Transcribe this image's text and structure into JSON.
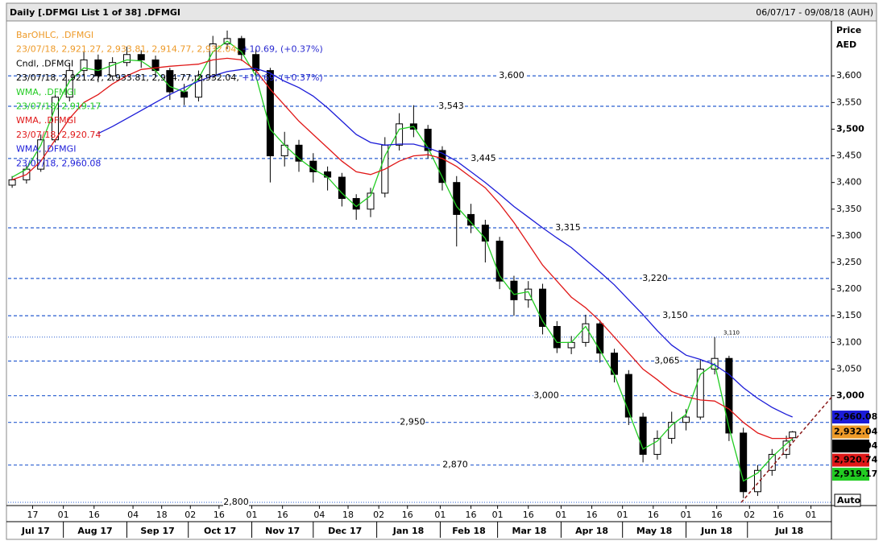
{
  "chart_data": {
    "type": "candlestick",
    "title": "Daily [.DFMGI List 1 of 38] .DFMGI",
    "date_range": "06/07/17 - 09/08/18 (AUH)",
    "y_axis_label": "Price",
    "y_axis_unit": "AED",
    "scale_mode": "Auto",
    "x": [
      "2017-07-07",
      "2017-07-14",
      "2017-07-21",
      "2017-07-28",
      "2017-08-04",
      "2017-08-11",
      "2017-08-18",
      "2017-08-25",
      "2017-09-01",
      "2017-09-08",
      "2017-09-15",
      "2017-09-22",
      "2017-09-29",
      "2017-10-06",
      "2017-10-13",
      "2017-10-20",
      "2017-10-27",
      "2017-11-03",
      "2017-11-10",
      "2017-11-17",
      "2017-11-24",
      "2017-12-01",
      "2017-12-08",
      "2017-12-15",
      "2017-12-22",
      "2017-12-29",
      "2018-01-05",
      "2018-01-12",
      "2018-01-19",
      "2018-01-26",
      "2018-02-02",
      "2018-02-09",
      "2018-02-16",
      "2018-02-23",
      "2018-03-02",
      "2018-03-09",
      "2018-03-16",
      "2018-03-23",
      "2018-03-30",
      "2018-04-06",
      "2018-04-13",
      "2018-04-20",
      "2018-04-27",
      "2018-05-04",
      "2018-05-11",
      "2018-05-18",
      "2018-05-25",
      "2018-06-01",
      "2018-06-08",
      "2018-06-15",
      "2018-06-22",
      "2018-06-29",
      "2018-07-06",
      "2018-07-13",
      "2018-07-20",
      "2018-07-23"
    ],
    "open": [
      3395,
      3405,
      3425,
      3480,
      3560,
      3610,
      3630,
      3600,
      3625,
      3640,
      3630,
      3610,
      3570,
      3560,
      3600,
      3660,
      3670,
      3640,
      3610,
      3450,
      3470,
      3440,
      3420,
      3410,
      3370,
      3350,
      3380,
      3470,
      3510,
      3500,
      3460,
      3400,
      3340,
      3320,
      3290,
      3215,
      3180,
      3200,
      3130,
      3090,
      3100,
      3135,
      3080,
      3040,
      2960,
      2890,
      2920,
      2950,
      2960,
      3050,
      3070,
      2930,
      2820,
      2860,
      2890,
      2921.27
    ],
    "high": [
      3412,
      3432,
      3490,
      3570,
      3622,
      3645,
      3640,
      3635,
      3655,
      3648,
      3638,
      3615,
      3585,
      3610,
      3675,
      3685,
      3675,
      3650,
      3615,
      3495,
      3480,
      3455,
      3430,
      3418,
      3378,
      3390,
      3485,
      3530,
      3545,
      3508,
      3468,
      3412,
      3360,
      3330,
      3298,
      3225,
      3215,
      3210,
      3140,
      3112,
      3152,
      3142,
      3088,
      3048,
      2968,
      2935,
      2970,
      2975,
      3068,
      3110,
      3075,
      2940,
      2870,
      2900,
      2925,
      2933.81
    ],
    "low": [
      3390,
      3398,
      3420,
      3475,
      3552,
      3600,
      3588,
      3592,
      3618,
      3615,
      3598,
      3555,
      3545,
      3552,
      3595,
      3650,
      3628,
      3600,
      3400,
      3430,
      3420,
      3400,
      3385,
      3355,
      3330,
      3335,
      3372,
      3460,
      3485,
      3445,
      3385,
      3280,
      3305,
      3250,
      3200,
      3150,
      3165,
      3115,
      3080,
      3078,
      3092,
      3062,
      3025,
      2945,
      2875,
      2880,
      2910,
      2935,
      2955,
      3040,
      2915,
      2808,
      2812,
      2850,
      2882,
      2914.77
    ],
    "close": [
      3405,
      3425,
      3480,
      3560,
      3610,
      3630,
      3600,
      3625,
      3640,
      3630,
      3610,
      3570,
      3560,
      3600,
      3660,
      3670,
      3640,
      3610,
      3450,
      3470,
      3440,
      3420,
      3410,
      3370,
      3350,
      3380,
      3470,
      3510,
      3500,
      3460,
      3400,
      3340,
      3320,
      3290,
      3215,
      3180,
      3200,
      3130,
      3090,
      3100,
      3135,
      3080,
      3040,
      2960,
      2890,
      2920,
      2950,
      2960,
      3050,
      3070,
      2930,
      2820,
      2860,
      2890,
      2915,
      2932.04
    ],
    "legend": [
      {
        "name": "BarOHLC, .DFMGI",
        "text": "23/07/18, 2,921.27, 2,933.81, 2,914.77, 2,932.04,",
        "change": "+10.69, (+0.37%)",
        "color": "#ee9a28"
      },
      {
        "name": "Cndl, .DFMGI",
        "text": "23/07/18, 2,921.27, 2,933.81, 2,914.77, 2,932.04,",
        "change": "+10.69, (+0.37%)",
        "color": "#000000"
      }
    ],
    "change_color": "#2a2ad0",
    "series": [
      {
        "name": "WMA, .DFMGI",
        "label": "23/07/18, 2,919.17",
        "color": "#22cc22",
        "values": [
          3410,
          3425,
          3470,
          3540,
          3590,
          3615,
          3610,
          3620,
          3630,
          3628,
          3610,
          3580,
          3570,
          3595,
          3645,
          3665,
          3645,
          3600,
          3500,
          3470,
          3445,
          3425,
          3410,
          3380,
          3355,
          3375,
          3450,
          3500,
          3505,
          3465,
          3410,
          3355,
          3325,
          3295,
          3225,
          3190,
          3195,
          3140,
          3100,
          3100,
          3130,
          3085,
          3040,
          2970,
          2900,
          2915,
          2945,
          2965,
          3040,
          3060,
          2940,
          2840,
          2855,
          2885,
          2910,
          2919.17
        ]
      },
      {
        "name": "WMA, .DFMGI",
        "label": "23/07/18, 2,920.74",
        "color": "#e01818",
        "values": [
          3405,
          3415,
          3440,
          3480,
          3520,
          3550,
          3565,
          3585,
          3600,
          3612,
          3615,
          3618,
          3620,
          3622,
          3630,
          3633,
          3630,
          3610,
          3575,
          3545,
          3515,
          3490,
          3465,
          3440,
          3420,
          3415,
          3425,
          3440,
          3450,
          3452,
          3445,
          3430,
          3410,
          3390,
          3360,
          3325,
          3285,
          3245,
          3215,
          3185,
          3165,
          3140,
          3110,
          3080,
          3050,
          3030,
          3008,
          2998,
          2992,
          2990,
          2975,
          2950,
          2930,
          2920,
          2920,
          2920.74
        ]
      },
      {
        "name": "WMA, .DFMGI",
        "label": "23/07/18, 2,960.08",
        "color": "#1c1cd8",
        "values": [
          null,
          null,
          null,
          null,
          null,
          null,
          3492,
          3505,
          3520,
          3535,
          3550,
          3565,
          3578,
          3590,
          3600,
          3608,
          3612,
          3614,
          3605,
          3590,
          3578,
          3562,
          3540,
          3515,
          3490,
          3475,
          3470,
          3472,
          3472,
          3465,
          3455,
          3440,
          3420,
          3400,
          3378,
          3355,
          3335,
          3315,
          3296,
          3278,
          3255,
          3232,
          3208,
          3180,
          3152,
          3122,
          3095,
          3076,
          3068,
          3058,
          3040,
          3015,
          2995,
          2978,
          2965,
          2960.08
        ]
      }
    ],
    "xlim": [
      "2017-07-05",
      "2018-08-11"
    ],
    "ylim": [
      2794,
      3697
    ],
    "yticks": [
      {
        "value": 3000,
        "label": "3,000"
      },
      {
        "value": 3050,
        "label": "3,050"
      },
      {
        "value": 3100,
        "label": "3,100"
      },
      {
        "value": 3150,
        "label": "3,150"
      },
      {
        "value": 3200,
        "label": "3,200"
      },
      {
        "value": 3250,
        "label": "3,250"
      },
      {
        "value": 3300,
        "label": "3,300"
      },
      {
        "value": 3350,
        "label": "3,350"
      },
      {
        "value": 3400,
        "label": "3,400"
      },
      {
        "value": 3450,
        "label": "3,450"
      },
      {
        "value": 3500,
        "label": "3,500"
      },
      {
        "value": 3550,
        "label": "3,550"
      },
      {
        "value": 3600,
        "label": "3,600"
      }
    ],
    "xticks": [
      {
        "value": "2017-07-17",
        "label": "17"
      },
      {
        "value": "2017-08-01",
        "label": "01"
      },
      {
        "value": "2017-08-16",
        "label": "16"
      },
      {
        "value": "2017-09-04",
        "label": "04"
      },
      {
        "value": "2017-09-18",
        "label": "18"
      },
      {
        "value": "2017-10-02",
        "label": "02"
      },
      {
        "value": "2017-10-16",
        "label": "16"
      },
      {
        "value": "2017-11-01",
        "label": "01"
      },
      {
        "value": "2017-11-16",
        "label": "16"
      },
      {
        "value": "2017-12-04",
        "label": "04"
      },
      {
        "value": "2017-12-18",
        "label": "18"
      },
      {
        "value": "2018-01-02",
        "label": "02"
      },
      {
        "value": "2018-01-16",
        "label": "16"
      },
      {
        "value": "2018-02-01",
        "label": "01"
      },
      {
        "value": "2018-02-16",
        "label": "16"
      },
      {
        "value": "2018-03-01",
        "label": "01"
      },
      {
        "value": "2018-03-16",
        "label": "16"
      },
      {
        "value": "2018-04-01",
        "label": "01"
      },
      {
        "value": "2018-04-16",
        "label": "16"
      },
      {
        "value": "2018-05-01",
        "label": "01"
      },
      {
        "value": "2018-05-16",
        "label": "16"
      },
      {
        "value": "2018-06-01",
        "label": "01"
      },
      {
        "value": "2018-06-16",
        "label": "16"
      },
      {
        "value": "2018-07-02",
        "label": "02"
      },
      {
        "value": "2018-07-16",
        "label": "16"
      },
      {
        "value": "2018-08-01",
        "label": "01"
      }
    ],
    "month_labels": [
      {
        "value": "2017-07-01",
        "label": "Jul 17"
      },
      {
        "value": "2017-08-01",
        "label": "Aug 17"
      },
      {
        "value": "2017-09-01",
        "label": "Sep 17"
      },
      {
        "value": "2017-10-01",
        "label": "Oct 17"
      },
      {
        "value": "2017-11-01",
        "label": "Nov 17"
      },
      {
        "value": "2017-12-01",
        "label": "Dec 17"
      },
      {
        "value": "2018-01-01",
        "label": "Jan 18"
      },
      {
        "value": "2018-02-01",
        "label": "Feb 18"
      },
      {
        "value": "2018-03-01",
        "label": "Mar 18"
      },
      {
        "value": "2018-04-01",
        "label": "Apr 18"
      },
      {
        "value": "2018-05-01",
        "label": "May 18"
      },
      {
        "value": "2018-06-01",
        "label": "Jun 18"
      },
      {
        "value": "2018-07-01",
        "label": "Jul 18"
      }
    ],
    "levels": [
      {
        "value": 3600,
        "label": "3,600",
        "dash": "dashed"
      },
      {
        "value": 3543,
        "label": "3,543",
        "dash": "dashed"
      },
      {
        "value": 3445,
        "label": "3,445",
        "dash": "dashed"
      },
      {
        "value": 3315,
        "label": "3,315",
        "dash": "dashed"
      },
      {
        "value": 3220,
        "label": "3,220",
        "dash": "dashed"
      },
      {
        "value": 3150,
        "label": "3,150",
        "dash": "dashed"
      },
      {
        "value": 3110,
        "label": "3,110",
        "dash": "dotted"
      },
      {
        "value": 3065,
        "label": "3,065",
        "dash": "dashed"
      },
      {
        "value": 3000,
        "label": "3,000",
        "dash": "dashed"
      },
      {
        "value": 2950,
        "label": "2,950",
        "dash": "dashed"
      },
      {
        "value": 2870,
        "label": "2,870",
        "dash": "dashed"
      },
      {
        "value": 2800,
        "label": "2,800",
        "dash": "dotted"
      }
    ],
    "level_color": "#2a5fd0",
    "trendline": {
      "x": [
        "2018-06-28",
        "2018-08-11"
      ],
      "values": [
        2800,
        2997
      ],
      "color": "#8b1a1a"
    },
    "value_badges": [
      {
        "value": 2960.08,
        "label": "2,960.08",
        "color": "#1c1cd8",
        "text_color": "#ffffff"
      },
      {
        "value": 2932.04,
        "label": "2,932.04",
        "color": "#ee9a28",
        "text_color": "#000000"
      },
      {
        "value": 2932.04,
        "label": "2,932.04",
        "color": "#000000",
        "text_color": "#ffffff"
      },
      {
        "value": 2920.74,
        "label": "2,920.74",
        "color": "#e01818",
        "text_color": "#ffffff"
      },
      {
        "value": 2919.17,
        "label": "2,919.17",
        "color": "#22cc22",
        "text_color": "#000000"
      }
    ]
  }
}
